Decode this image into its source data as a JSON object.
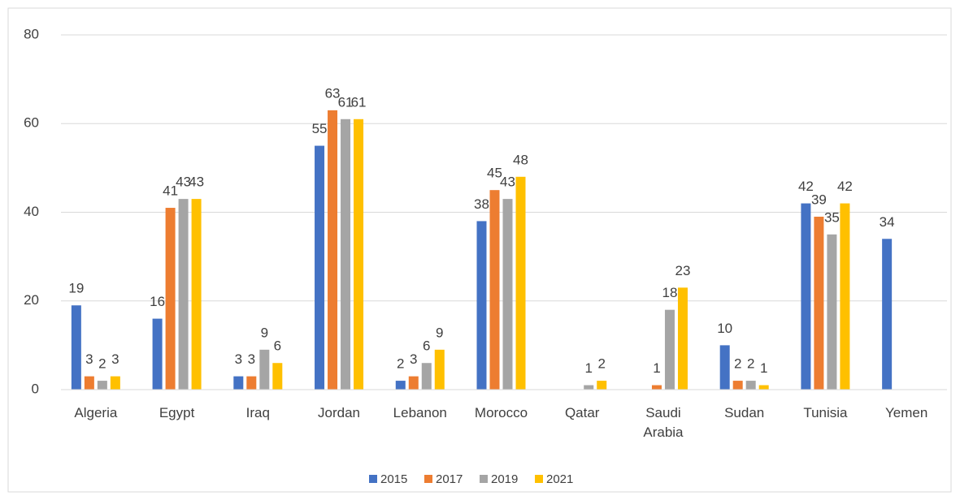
{
  "chart_data": {
    "type": "bar",
    "categories": [
      "Algeria",
      "Egypt",
      "Iraq",
      "Jordan",
      "Lebanon",
      "Morocco",
      "Qatar",
      "Saudi Arabia",
      "Sudan",
      "Tunisia",
      "Yemen"
    ],
    "series": [
      {
        "name": "2015",
        "color": "#4472c4",
        "values": [
          19,
          16,
          3,
          55,
          2,
          38,
          null,
          null,
          10,
          42,
          34
        ]
      },
      {
        "name": "2017",
        "color": "#ed7d31",
        "values": [
          3,
          41,
          3,
          63,
          3,
          45,
          null,
          1,
          2,
          39,
          null
        ]
      },
      {
        "name": "2019",
        "color": "#a5a5a5",
        "values": [
          2,
          43,
          9,
          61,
          6,
          43,
          1,
          18,
          2,
          35,
          null
        ]
      },
      {
        "name": "2021",
        "color": "#ffc000",
        "values": [
          3,
          43,
          6,
          61,
          9,
          48,
          2,
          23,
          1,
          42,
          null
        ]
      }
    ],
    "ylim": [
      0,
      80
    ],
    "yticks": [
      0,
      20,
      40,
      60,
      80
    ],
    "grid": true,
    "legend": "bottom"
  }
}
